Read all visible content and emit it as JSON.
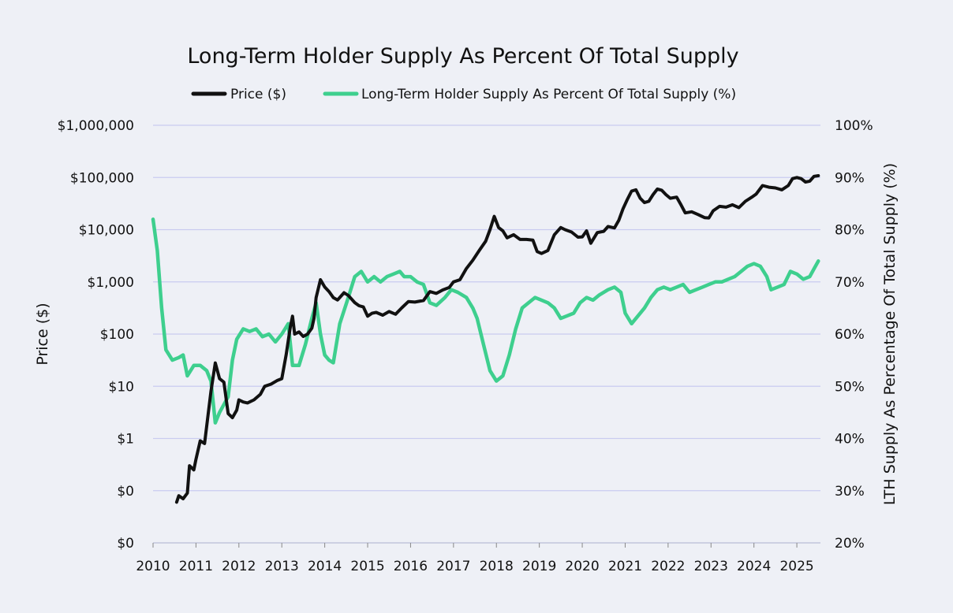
{
  "chart_data": {
    "type": "line",
    "title": "Long-Term Holder Supply As Percent Of Total Supply",
    "ylabel": "Price ($)",
    "y2label": "LTH Supply As Percentage Of Total Supply (%)",
    "y_scale": "log",
    "ylim": [
      0.01,
      1000000
    ],
    "y2lim": [
      20,
      100
    ],
    "xlim": [
      2010.0,
      2025.55
    ],
    "grid": true,
    "legend_position": "top-center",
    "x_ticks": [
      "2010",
      "2011",
      "2012",
      "2013",
      "2014",
      "2015",
      "2016",
      "2017",
      "2018",
      "2019",
      "2020",
      "2021",
      "2022",
      "2023",
      "2024",
      "2025"
    ],
    "y_ticks": [
      {
        "value": 1000000,
        "label": "$1,000,000"
      },
      {
        "value": 100000,
        "label": "$100,000"
      },
      {
        "value": 10000,
        "label": "$10,000"
      },
      {
        "value": 1000,
        "label": "$1,000"
      },
      {
        "value": 100,
        "label": "$100"
      },
      {
        "value": 10,
        "label": "$10"
      },
      {
        "value": 1,
        "label": "$1"
      },
      {
        "value": 0.1,
        "label": "$0"
      },
      {
        "value": 0.01,
        "label": "$0"
      }
    ],
    "y2_ticks": [
      {
        "value": 100,
        "label": "100%"
      },
      {
        "value": 90,
        "label": "90%"
      },
      {
        "value": 80,
        "label": "80%"
      },
      {
        "value": 70,
        "label": "70%"
      },
      {
        "value": 60,
        "label": "60%"
      },
      {
        "value": 50,
        "label": "50%"
      },
      {
        "value": 40,
        "label": "40%"
      },
      {
        "value": 30,
        "label": "30%"
      },
      {
        "value": 20,
        "label": "20%"
      }
    ],
    "series": [
      {
        "name": "Price ($)",
        "color": "#111111",
        "axis": "left",
        "points": [
          [
            2010.55,
            0.06
          ],
          [
            2010.6,
            0.08
          ],
          [
            2010.7,
            0.07
          ],
          [
            2010.8,
            0.09
          ],
          [
            2010.85,
            0.3
          ],
          [
            2010.95,
            0.25
          ],
          [
            2011.0,
            0.4
          ],
          [
            2011.1,
            0.9
          ],
          [
            2011.2,
            0.8
          ],
          [
            2011.35,
            8
          ],
          [
            2011.45,
            28
          ],
          [
            2011.55,
            14
          ],
          [
            2011.65,
            12
          ],
          [
            2011.75,
            3
          ],
          [
            2011.85,
            2.5
          ],
          [
            2011.95,
            3.5
          ],
          [
            2012.0,
            5.5
          ],
          [
            2012.1,
            5
          ],
          [
            2012.2,
            4.8
          ],
          [
            2012.35,
            5.5
          ],
          [
            2012.5,
            7
          ],
          [
            2012.6,
            10
          ],
          [
            2012.75,
            11
          ],
          [
            2012.9,
            13
          ],
          [
            2013.0,
            14
          ],
          [
            2013.1,
            40
          ],
          [
            2013.2,
            140
          ],
          [
            2013.25,
            220
          ],
          [
            2013.3,
            100
          ],
          [
            2013.4,
            110
          ],
          [
            2013.5,
            90
          ],
          [
            2013.6,
            100
          ],
          [
            2013.7,
            130
          ],
          [
            2013.75,
            200
          ],
          [
            2013.8,
            500
          ],
          [
            2013.9,
            1100
          ],
          [
            2014.0,
            800
          ],
          [
            2014.1,
            650
          ],
          [
            2014.2,
            500
          ],
          [
            2014.3,
            450
          ],
          [
            2014.45,
            620
          ],
          [
            2014.55,
            550
          ],
          [
            2014.7,
            400
          ],
          [
            2014.8,
            350
          ],
          [
            2014.9,
            330
          ],
          [
            2015.0,
            220
          ],
          [
            2015.1,
            250
          ],
          [
            2015.2,
            260
          ],
          [
            2015.35,
            230
          ],
          [
            2015.5,
            270
          ],
          [
            2015.65,
            240
          ],
          [
            2015.8,
            320
          ],
          [
            2015.95,
            420
          ],
          [
            2016.1,
            410
          ],
          [
            2016.3,
            440
          ],
          [
            2016.45,
            650
          ],
          [
            2016.6,
            600
          ],
          [
            2016.75,
            700
          ],
          [
            2016.9,
            780
          ],
          [
            2017.0,
            1000
          ],
          [
            2017.15,
            1100
          ],
          [
            2017.3,
            1800
          ],
          [
            2017.45,
            2600
          ],
          [
            2017.6,
            4000
          ],
          [
            2017.75,
            6000
          ],
          [
            2017.85,
            10000
          ],
          [
            2017.95,
            18000
          ],
          [
            2018.05,
            11000
          ],
          [
            2018.15,
            9500
          ],
          [
            2018.25,
            7000
          ],
          [
            2018.4,
            8000
          ],
          [
            2018.55,
            6500
          ],
          [
            2018.7,
            6500
          ],
          [
            2018.85,
            6300
          ],
          [
            2018.95,
            3800
          ],
          [
            2019.05,
            3500
          ],
          [
            2019.2,
            4000
          ],
          [
            2019.35,
            8000
          ],
          [
            2019.5,
            11000
          ],
          [
            2019.6,
            10000
          ],
          [
            2019.75,
            9000
          ],
          [
            2019.9,
            7200
          ],
          [
            2020.0,
            7300
          ],
          [
            2020.1,
            9500
          ],
          [
            2020.2,
            5500
          ],
          [
            2020.35,
            8800
          ],
          [
            2020.5,
            9300
          ],
          [
            2020.6,
            11500
          ],
          [
            2020.75,
            10800
          ],
          [
            2020.85,
            15000
          ],
          [
            2020.95,
            25000
          ],
          [
            2021.05,
            38000
          ],
          [
            2021.15,
            55000
          ],
          [
            2021.25,
            58000
          ],
          [
            2021.35,
            40000
          ],
          [
            2021.45,
            33000
          ],
          [
            2021.55,
            35000
          ],
          [
            2021.65,
            47000
          ],
          [
            2021.75,
            60000
          ],
          [
            2021.85,
            57000
          ],
          [
            2021.95,
            47000
          ],
          [
            2022.05,
            40000
          ],
          [
            2022.2,
            42000
          ],
          [
            2022.3,
            30000
          ],
          [
            2022.4,
            21000
          ],
          [
            2022.55,
            22000
          ],
          [
            2022.7,
            19500
          ],
          [
            2022.85,
            17000
          ],
          [
            2022.95,
            16800
          ],
          [
            2023.05,
            23000
          ],
          [
            2023.2,
            28000
          ],
          [
            2023.35,
            27000
          ],
          [
            2023.5,
            30000
          ],
          [
            2023.65,
            26500
          ],
          [
            2023.8,
            35000
          ],
          [
            2023.95,
            42000
          ],
          [
            2024.05,
            48000
          ],
          [
            2024.2,
            70000
          ],
          [
            2024.35,
            65000
          ],
          [
            2024.5,
            63000
          ],
          [
            2024.65,
            58000
          ],
          [
            2024.8,
            70000
          ],
          [
            2024.9,
            95000
          ],
          [
            2025.0,
            100000
          ],
          [
            2025.1,
            95000
          ],
          [
            2025.2,
            82000
          ],
          [
            2025.3,
            85000
          ],
          [
            2025.4,
            105000
          ],
          [
            2025.5,
            108000
          ]
        ]
      },
      {
        "name": "Long-Term Holder Supply As Percent Of Total Supply (%)",
        "color": "#3ecf8e",
        "axis": "right",
        "points": [
          [
            2010.0,
            82
          ],
          [
            2010.1,
            76
          ],
          [
            2010.2,
            65
          ],
          [
            2010.3,
            57
          ],
          [
            2010.45,
            55
          ],
          [
            2010.6,
            55.5
          ],
          [
            2010.7,
            56
          ],
          [
            2010.8,
            52
          ],
          [
            2010.95,
            54
          ],
          [
            2011.1,
            54
          ],
          [
            2011.25,
            53
          ],
          [
            2011.35,
            51
          ],
          [
            2011.45,
            43
          ],
          [
            2011.55,
            45
          ],
          [
            2011.65,
            46.5
          ],
          [
            2011.75,
            48
          ],
          [
            2011.85,
            55
          ],
          [
            2011.95,
            59
          ],
          [
            2012.1,
            61
          ],
          [
            2012.25,
            60.5
          ],
          [
            2012.4,
            61
          ],
          [
            2012.55,
            59.5
          ],
          [
            2012.7,
            60
          ],
          [
            2012.85,
            58.5
          ],
          [
            2013.0,
            60
          ],
          [
            2013.15,
            62
          ],
          [
            2013.25,
            54
          ],
          [
            2013.4,
            54
          ],
          [
            2013.55,
            58
          ],
          [
            2013.7,
            63
          ],
          [
            2013.8,
            66
          ],
          [
            2013.9,
            60
          ],
          [
            2014.0,
            56
          ],
          [
            2014.1,
            55
          ],
          [
            2014.2,
            54.5
          ],
          [
            2014.35,
            62
          ],
          [
            2014.55,
            67
          ],
          [
            2014.7,
            71
          ],
          [
            2014.85,
            72
          ],
          [
            2015.0,
            70
          ],
          [
            2015.15,
            71
          ],
          [
            2015.3,
            70
          ],
          [
            2015.45,
            71
          ],
          [
            2015.6,
            71.5
          ],
          [
            2015.75,
            72
          ],
          [
            2015.85,
            71
          ],
          [
            2016.0,
            71
          ],
          [
            2016.15,
            70
          ],
          [
            2016.3,
            69.5
          ],
          [
            2016.45,
            66
          ],
          [
            2016.6,
            65.5
          ],
          [
            2016.8,
            67
          ],
          [
            2016.95,
            68.5
          ],
          [
            2017.1,
            68
          ],
          [
            2017.3,
            67
          ],
          [
            2017.45,
            65
          ],
          [
            2017.55,
            63
          ],
          [
            2017.7,
            58
          ],
          [
            2017.85,
            53
          ],
          [
            2018.0,
            51
          ],
          [
            2018.15,
            52
          ],
          [
            2018.3,
            56
          ],
          [
            2018.45,
            61
          ],
          [
            2018.6,
            65
          ],
          [
            2018.75,
            66
          ],
          [
            2018.9,
            67
          ],
          [
            2019.05,
            66.5
          ],
          [
            2019.2,
            66
          ],
          [
            2019.35,
            65
          ],
          [
            2019.5,
            63
          ],
          [
            2019.65,
            63.5
          ],
          [
            2019.8,
            64
          ],
          [
            2019.95,
            66
          ],
          [
            2020.1,
            67
          ],
          [
            2020.25,
            66.5
          ],
          [
            2020.4,
            67.5
          ],
          [
            2020.6,
            68.5
          ],
          [
            2020.75,
            69
          ],
          [
            2020.9,
            68
          ],
          [
            2021.0,
            64
          ],
          [
            2021.15,
            62
          ],
          [
            2021.3,
            63.5
          ],
          [
            2021.45,
            65
          ],
          [
            2021.6,
            67
          ],
          [
            2021.75,
            68.5
          ],
          [
            2021.9,
            69
          ],
          [
            2022.05,
            68.5
          ],
          [
            2022.2,
            69
          ],
          [
            2022.35,
            69.5
          ],
          [
            2022.5,
            68
          ],
          [
            2022.65,
            68.5
          ],
          [
            2022.8,
            69
          ],
          [
            2022.95,
            69.5
          ],
          [
            2023.1,
            70
          ],
          [
            2023.25,
            70
          ],
          [
            2023.4,
            70.5
          ],
          [
            2023.55,
            71
          ],
          [
            2023.7,
            72
          ],
          [
            2023.85,
            73
          ],
          [
            2024.0,
            73.5
          ],
          [
            2024.15,
            73
          ],
          [
            2024.3,
            71
          ],
          [
            2024.4,
            68.5
          ],
          [
            2024.55,
            69
          ],
          [
            2024.7,
            69.5
          ],
          [
            2024.85,
            72
          ],
          [
            2025.0,
            71.5
          ],
          [
            2025.15,
            70.5
          ],
          [
            2025.3,
            71
          ],
          [
            2025.4,
            72.5
          ],
          [
            2025.5,
            74
          ]
        ]
      }
    ]
  }
}
